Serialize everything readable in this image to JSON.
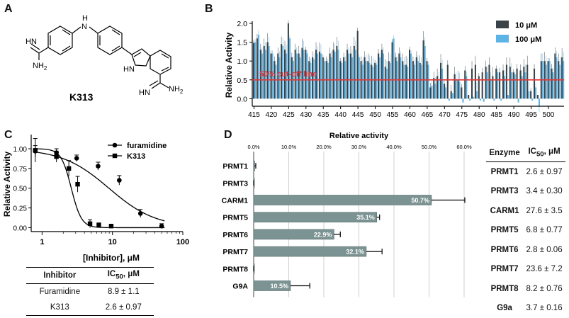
{
  "panels": {
    "a": "A",
    "b": "B",
    "c": "C",
    "d": "D"
  },
  "structure": {
    "compound_name": "K313",
    "atoms": {
      "nh": "H",
      "n": "N",
      "hn_top": "HN",
      "nh2_top": "NH",
      "nh2_sub": "2",
      "hn_bottom": "HN",
      "nh2_bottom": "NH",
      "nh2_bottom_sub": "2",
      "indole_h": "H",
      "indole_n": "N"
    }
  },
  "colors": {
    "dark": "#3a4348",
    "light": "#5cb4e6",
    "cutoff": "#e03a3a",
    "grid": "#cfcfcf",
    "bar_d": "#7b9392",
    "bar_d_edge": "#5b6f6e"
  },
  "chart_data": [
    {
      "type": "bar",
      "panel": "B",
      "xlabel": "",
      "ylabel": "Relative Activity",
      "ylim": [
        -0.2,
        2.0
      ],
      "y_ticks": [
        "2.0",
        "1.5",
        "1.0",
        "0.5",
        "0.0"
      ],
      "x_start": 415,
      "x_tick_labels": [
        "415",
        "420",
        "425",
        "430",
        "435",
        "440",
        "445",
        "450",
        "455",
        "460",
        "465",
        "470",
        "475",
        "480",
        "485",
        "490",
        "495",
        "500"
      ],
      "cutoff_value": 0.5,
      "cutoff_label": "50% cut-off line",
      "series": [
        {
          "name": "10 μM",
          "values": [
            1.48,
            1.6,
            1.3,
            1.4,
            1.5,
            1.2,
            1.0,
            1.2,
            1.45,
            1.3,
            2.0,
            1.1,
            1.3,
            1.2,
            1.35,
            1.3,
            1.0,
            1.1,
            1.3,
            1.25,
            1.1,
            1.0,
            1.2,
            1.3,
            1.4,
            1.0,
            1.1,
            1.3,
            1.2,
            1.4,
            1.8,
            1.0,
            1.1,
            1.0,
            0.9,
            0.95,
            1.2,
            1.3,
            0.85,
            1.0,
            1.5,
            1.1,
            1.2,
            1.0,
            0.9,
            1.3,
            1.0,
            1.1,
            0.95,
            1.55,
            1.0,
            0.3,
            0.55,
            0.6,
            0.95,
            0.4,
            0.9,
            0.2,
            0.65,
            0.5,
            0.3,
            0.75,
            0.1,
            0.8,
            0.9,
            0.6,
            0.7,
            0.85,
            0.9,
            0.6,
            0.8,
            0.7,
            0.75,
            0.9,
            0.85,
            0.7,
            0.8,
            0.75,
            0.85,
            0.9,
            0.2,
            0.8,
            0.1,
            1.0,
            1.0,
            1.0,
            0.8,
            1.2,
            1.0,
            1.1
          ]
        },
        {
          "name": "100 μM",
          "values": [
            1.5,
            1.7,
            1.2,
            1.3,
            1.4,
            1.2,
            0.9,
            1.1,
            1.4,
            1.2,
            1.6,
            1.0,
            1.2,
            1.1,
            1.3,
            1.2,
            0.95,
            1.05,
            1.2,
            1.2,
            1.0,
            0.95,
            1.1,
            1.25,
            1.3,
            0.95,
            1.0,
            1.2,
            1.1,
            1.3,
            1.1,
            0.9,
            1.0,
            0.95,
            0.85,
            0.9,
            1.1,
            1.2,
            0.8,
            0.95,
            1.6,
            1.0,
            1.1,
            0.9,
            0.85,
            1.2,
            0.9,
            1.0,
            0.9,
            1.4,
            0.9,
            0.35,
            0.4,
            0.5,
            0.8,
            0.3,
            -0.05,
            0.15,
            0.5,
            0.45,
            -0.1,
            0.6,
            -0.05,
            0.05,
            0.2,
            -0.05,
            -0.08,
            0.7,
            0.5,
            -0.05,
            0.7,
            -0.05,
            0.6,
            0.1,
            0.7,
            0.65,
            -0.1,
            0.6,
            0.7,
            0.2,
            -0.05,
            0.3,
            -0.2,
            1.0,
            0.9,
            1.0,
            0.7,
            1.1,
            0.9,
            1.0
          ]
        }
      ]
    },
    {
      "type": "scatter",
      "panel": "C",
      "xlabel": "[Inhibitor], μM",
      "ylabel": "Relative Activity",
      "x_scale": "log",
      "xlim": [
        0.7,
        100
      ],
      "ylim": [
        -0.05,
        1.18
      ],
      "x_ticks": [
        1,
        10,
        100
      ],
      "x_tick_labels": [
        "1",
        "10",
        "100"
      ],
      "y_ticks": [
        0.0,
        0.25,
        0.5,
        0.75,
        1.0
      ],
      "y_tick_labels": [
        "0.00",
        "0.25",
        "0.50",
        "0.75",
        "1.00"
      ],
      "series": [
        {
          "name": "furamidine",
          "marker": "circle",
          "ic50": 8.9,
          "hill": 1.3,
          "x": [
            0.8,
            1.6,
            3.1,
            6.25,
            12.5,
            25,
            50
          ],
          "y": [
            0.97,
            0.95,
            0.88,
            0.78,
            0.6,
            0.18,
            0.02
          ],
          "err": [
            0.07,
            0.05,
            0.04,
            0.05,
            0.06,
            0.05,
            0.03
          ]
        },
        {
          "name": "K313",
          "marker": "square",
          "ic50": 2.6,
          "hill": 6,
          "x": [
            0.8,
            1.6,
            2.4,
            3.2,
            4.8,
            6.4,
            9.6
          ],
          "y": [
            0.98,
            0.9,
            0.75,
            0.55,
            0.05,
            0.03,
            0.02
          ],
          "err": [
            0.15,
            0.07,
            0.1,
            0.1,
            0.05,
            0.03,
            0.02
          ]
        }
      ]
    },
    {
      "type": "bar",
      "panel": "D",
      "orientation": "horizontal",
      "title": "Relative activity",
      "xlim": [
        0,
        60
      ],
      "x_ticks": [
        0,
        10,
        20,
        30,
        40,
        50,
        60
      ],
      "x_tick_labels": [
        "0.0%",
        "10.0%",
        "20.0%",
        "30.0%",
        "40.0%",
        "50.0%",
        "60.0%"
      ],
      "categories": [
        "PRMT1",
        "PRMT3",
        "CARM1",
        "PRMT5",
        "PRMT6",
        "PRMT7",
        "PRMT8",
        "G9A"
      ],
      "values": [
        0.3,
        0.2,
        50.7,
        35.1,
        22.9,
        32.1,
        0.2,
        10.5
      ],
      "errors": [
        0.3,
        0.2,
        9.5,
        0.8,
        1.8,
        4.5,
        0.2,
        5.5
      ],
      "data_labels": [
        "",
        "",
        "50.7%",
        "35.1%",
        "22.9%",
        "32.1%",
        "",
        "10.5%"
      ]
    }
  ],
  "table_c": {
    "headers": [
      "Inhibitor",
      "IC",
      "50",
      ", μM"
    ],
    "rows": [
      [
        "Furamidine",
        "8.9 ± 1.1"
      ],
      [
        "K313",
        "2.6 ± 0.97"
      ]
    ]
  },
  "table_d": {
    "headers": [
      "Enzyme",
      "IC",
      "50",
      ", μM"
    ],
    "rows": [
      [
        "PRMT1",
        "2.6 ± 0.97"
      ],
      [
        "PRMT3",
        "3.4 ± 0.30"
      ],
      [
        "CARM1",
        "27.6 ± 3.5"
      ],
      [
        "PRMT5",
        "6.8 ± 0.77"
      ],
      [
        "PRMT6",
        "2.8 ± 0.06"
      ],
      [
        "PRMT7",
        "23.6 ± 7.2"
      ],
      [
        "PRMT8",
        "8.2 ± 0.76"
      ],
      [
        "G9a",
        "3.7 ± 0.16"
      ]
    ]
  }
}
